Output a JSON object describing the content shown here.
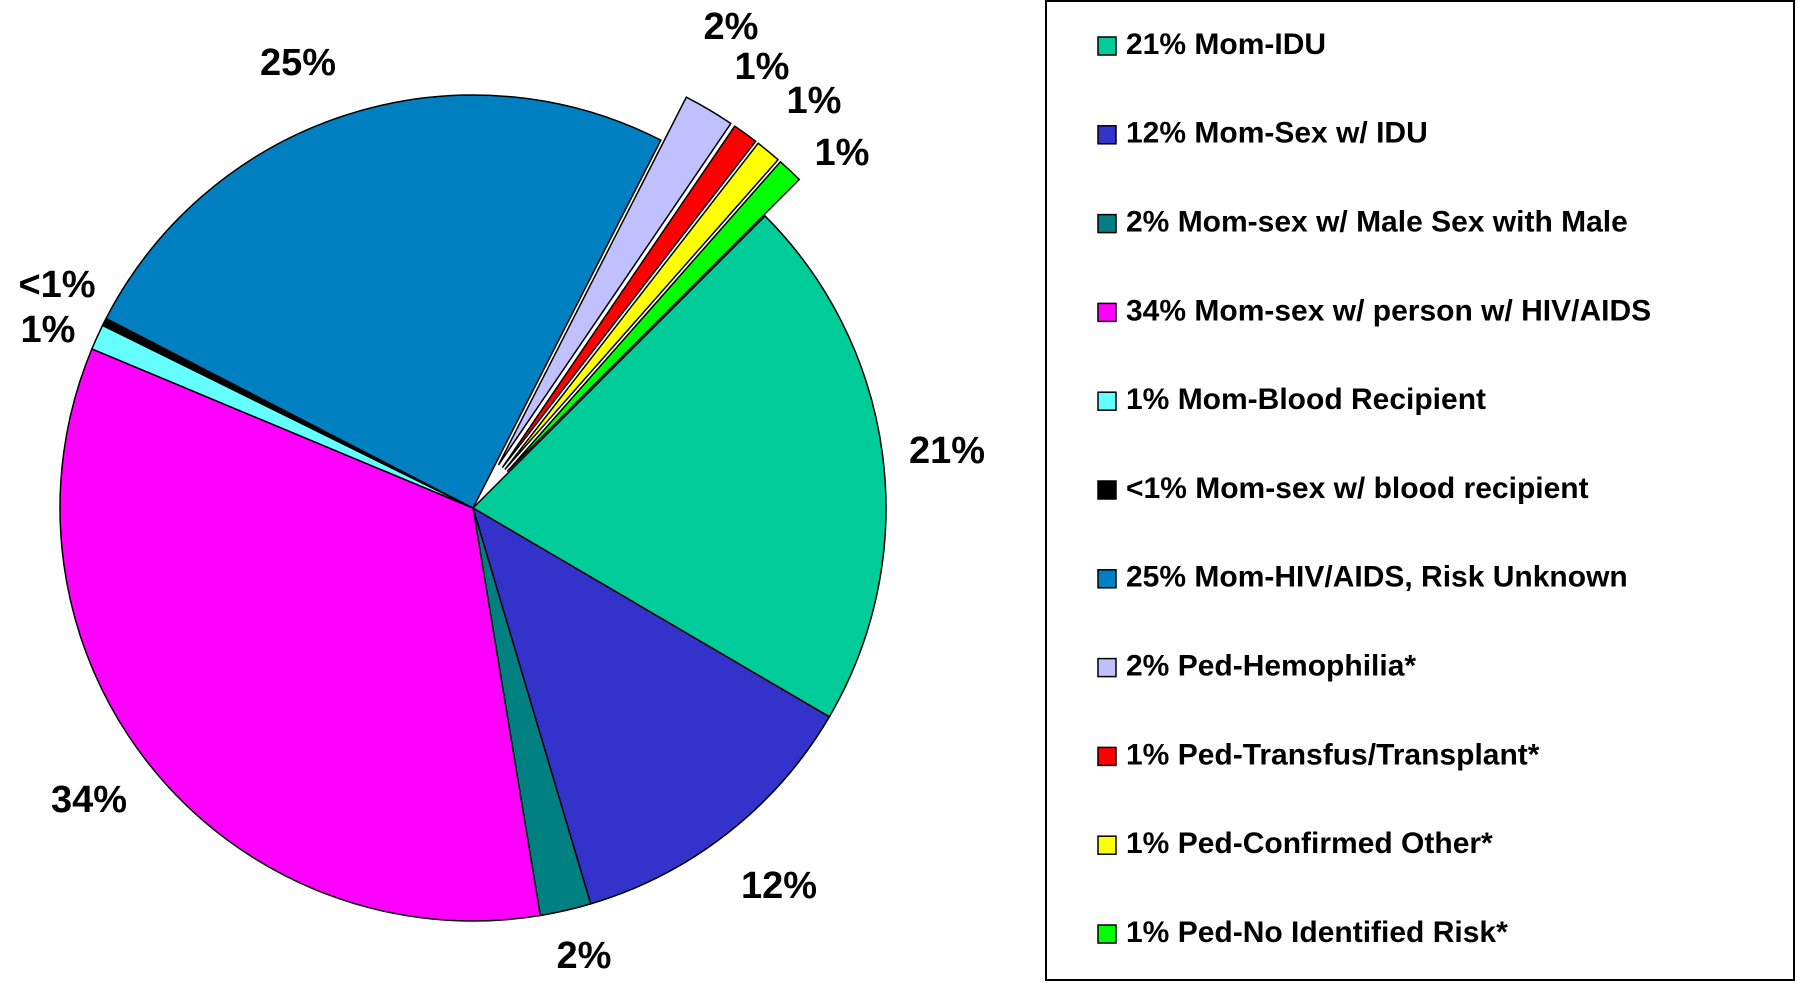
{
  "chart_data": {
    "type": "pie",
    "categories": [
      "21% Mom-IDU",
      "12% Mom-Sex w/ IDU",
      "2% Mom-sex w/ Male Sex with Male",
      "34% Mom-sex w/ person w/ HIV/AIDS",
      "1% Mom-Blood Recipient",
      "<1% Mom-sex w/ blood recipient",
      "25% Mom-HIV/AIDS, Risk Unknown",
      "2% Ped-Hemophilia*",
      "1% Ped-Transfus/Transplant*",
      "1% Ped-Confirmed Other*",
      "1% Ped-No Identified Risk*"
    ],
    "values": [
      21,
      12,
      2,
      34,
      1,
      0.3,
      25,
      2,
      1,
      1,
      1
    ],
    "value_labels": [
      "21%",
      "12%",
      "2%",
      "34%",
      "1%",
      "<1%",
      "25%",
      "2%",
      "1%",
      "1%",
      "1%"
    ],
    "colors": [
      "#00cc99",
      "#3333cc",
      "#008080",
      "#ff00ff",
      "#66ffff",
      "#000000",
      "#0080c0",
      "#c0c0ff",
      "#ff0000",
      "#ffff00",
      "#00ff00"
    ],
    "exploded": [
      false,
      false,
      false,
      false,
      false,
      false,
      false,
      true,
      true,
      true,
      true
    ],
    "legend": "right"
  }
}
